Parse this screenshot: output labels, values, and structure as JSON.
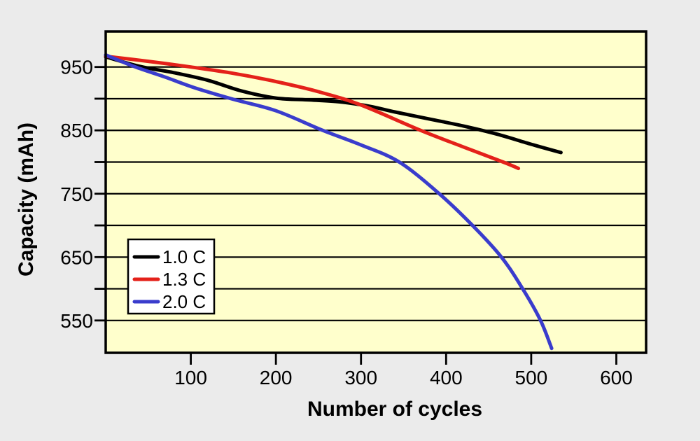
{
  "colors": {
    "page_bg": "#ebebeb",
    "plot_bg": "#ffffcc",
    "axis": "#000000",
    "grid": "#000000",
    "legend_bg": "#ffffff",
    "legend_border": "#000000"
  },
  "chart_data": {
    "type": "line",
    "title": "",
    "xlabel": "Number of cycles",
    "ylabel": "Capacity (mAh)",
    "xlim": [
      0,
      635
    ],
    "ylim": [
      499,
      1006
    ],
    "grid": true,
    "x_ticks": [
      100,
      200,
      300,
      400,
      500,
      600
    ],
    "y_ticks": [
      550,
      600,
      650,
      700,
      750,
      800,
      850,
      900,
      950
    ],
    "y_tick_labeled": [
      550,
      650,
      750,
      850,
      950
    ],
    "y_gridlines": [
      550,
      600,
      650,
      700,
      750,
      800,
      850,
      900,
      950
    ],
    "legend_position": "inside lower-left",
    "series": [
      {
        "name": "1.0 C",
        "color": "#000000",
        "points": [
          [
            0,
            966
          ],
          [
            40,
            951
          ],
          [
            80,
            941
          ],
          [
            120,
            929
          ],
          [
            160,
            912
          ],
          [
            200,
            901
          ],
          [
            240,
            898
          ],
          [
            275,
            895
          ],
          [
            310,
            888
          ],
          [
            340,
            879
          ],
          [
            380,
            868
          ],
          [
            420,
            857
          ],
          [
            460,
            844
          ],
          [
            500,
            828
          ],
          [
            535,
            815
          ]
        ]
      },
      {
        "name": "1.3 C",
        "color": "#e4211a",
        "points": [
          [
            0,
            967
          ],
          [
            50,
            959
          ],
          [
            100,
            950
          ],
          [
            150,
            940
          ],
          [
            200,
            927
          ],
          [
            250,
            911
          ],
          [
            300,
            890
          ],
          [
            370,
            850
          ],
          [
            420,
            824
          ],
          [
            467,
            800
          ],
          [
            485,
            790
          ]
        ]
      },
      {
        "name": "2.0 C",
        "color": "#3a3ccc",
        "points": [
          [
            0,
            969
          ],
          [
            35,
            950
          ],
          [
            70,
            934
          ],
          [
            105,
            917
          ],
          [
            150,
            899
          ],
          [
            200,
            881
          ],
          [
            255,
            850
          ],
          [
            300,
            827
          ],
          [
            345,
            800
          ],
          [
            392,
            750
          ],
          [
            431,
            700
          ],
          [
            465,
            650
          ],
          [
            490,
            600
          ],
          [
            511,
            550
          ],
          [
            524,
            506
          ]
        ]
      }
    ]
  }
}
